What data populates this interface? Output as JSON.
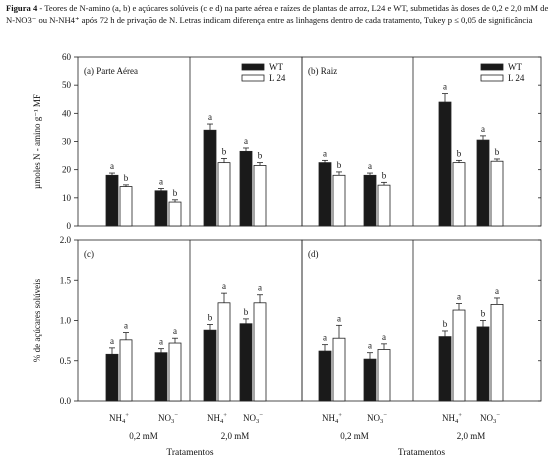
{
  "caption": {
    "label": "Figura 4",
    "text": " - Teores de N-amino (a, b) e açúcares solúveis (c e d) na parte aérea e raízes de plantas de arroz, L24 e WT, submetidas às doses de 0,2 e 2,0 mM de N-NO3⁻ ou N-NH4⁺ após 72 h de privação de N. Letras indicam diferença entre as linhagens dentro de cada tratamento, Tukey p ≤ 0,05 de significância"
  },
  "x_axis": {
    "tick_labels": [
      "NH4+",
      "NO3-",
      "NH4+",
      "NO3-"
    ],
    "dose_labels": [
      "0,2 mM",
      "2,0 mM"
    ],
    "title": "Tratamentos"
  },
  "legend": {
    "entries": [
      "WT",
      "L 24"
    ],
    "colors": {
      "WT": "#1a1a1a",
      "L 24": "#ffffff"
    }
  },
  "chart_data": [
    {
      "type": "bar",
      "panel": "a",
      "title": "(a) Parte Aérea",
      "ylabel": "µmoles N - amino g⁻¹ MF",
      "ylim": [
        0,
        60
      ],
      "yticks": [
        "0",
        "10",
        "20",
        "30",
        "40",
        "50",
        "60"
      ],
      "categories": [
        "NH4+ 0,2 mM",
        "NO3- 0,2 mM",
        "NH4+ 2,0 mM",
        "NO3- 2,0 mM"
      ],
      "series": [
        {
          "name": "WT",
          "values": [
            18,
            12.5,
            34,
            26.5
          ],
          "errors": [
            0.8,
            0.8,
            2.2,
            1.2
          ],
          "letters": [
            "a",
            "a",
            "a",
            "a"
          ]
        },
        {
          "name": "L 24",
          "values": [
            14,
            8.5,
            22.5,
            21.5
          ],
          "errors": [
            0.6,
            0.8,
            1.5,
            1.0
          ],
          "letters": [
            "b",
            "b",
            "b",
            "b"
          ]
        }
      ]
    },
    {
      "type": "bar",
      "panel": "b",
      "title": "(b)  Raiz",
      "ylim": [
        0,
        60
      ],
      "categories": [
        "NH4+ 0,2 mM",
        "NO3- 0,2 mM",
        "NH4+ 2,0 mM",
        "NO3- 2,0 mM"
      ],
      "series": [
        {
          "name": "WT",
          "values": [
            22.5,
            18,
            44,
            30.5
          ],
          "errors": [
            0.8,
            0.8,
            3.0,
            1.5
          ],
          "letters": [
            "a",
            "a",
            "a",
            "a"
          ]
        },
        {
          "name": "L 24",
          "values": [
            18,
            14.5,
            22.5,
            23
          ],
          "errors": [
            1.2,
            1.0,
            0.8,
            0.8
          ],
          "letters": [
            "b",
            "b",
            "b",
            "b"
          ]
        }
      ]
    },
    {
      "type": "bar",
      "panel": "c",
      "title": "(c)",
      "ylabel": "% de açúcares solúveis",
      "ylim": [
        0,
        2.0
      ],
      "yticks": [
        "0.0",
        "0.5",
        "1.0",
        "1.5",
        "2.0"
      ],
      "categories": [
        "NH4+ 0,2 mM",
        "NO3- 0,2 mM",
        "NH4+ 2,0 mM",
        "NO3- 2,0 mM"
      ],
      "series": [
        {
          "name": "WT",
          "values": [
            0.58,
            0.6,
            0.88,
            0.96
          ],
          "errors": [
            0.08,
            0.05,
            0.07,
            0.06
          ],
          "letters": [
            "a",
            "a",
            "b",
            "b"
          ]
        },
        {
          "name": "L 24",
          "values": [
            0.76,
            0.72,
            1.22,
            1.22
          ],
          "errors": [
            0.09,
            0.06,
            0.12,
            0.1
          ],
          "letters": [
            "a",
            "a",
            "a",
            "a"
          ]
        }
      ]
    },
    {
      "type": "bar",
      "panel": "d",
      "title": "(d)",
      "ylim": [
        0,
        2.0
      ],
      "categories": [
        "NH4+ 0,2 mM",
        "NO3- 0,2 mM",
        "NH4+ 2,0 mM",
        "NO3- 2,0 mM"
      ],
      "series": [
        {
          "name": "WT",
          "values": [
            0.62,
            0.52,
            0.8,
            0.92
          ],
          "errors": [
            0.08,
            0.08,
            0.07,
            0.08
          ],
          "letters": [
            "a",
            "a",
            "b",
            "b"
          ]
        },
        {
          "name": "L 24",
          "values": [
            0.78,
            0.64,
            1.13,
            1.2
          ],
          "errors": [
            0.16,
            0.07,
            0.08,
            0.08
          ],
          "letters": [
            "a",
            "a",
            "a",
            "a"
          ]
        }
      ]
    }
  ]
}
